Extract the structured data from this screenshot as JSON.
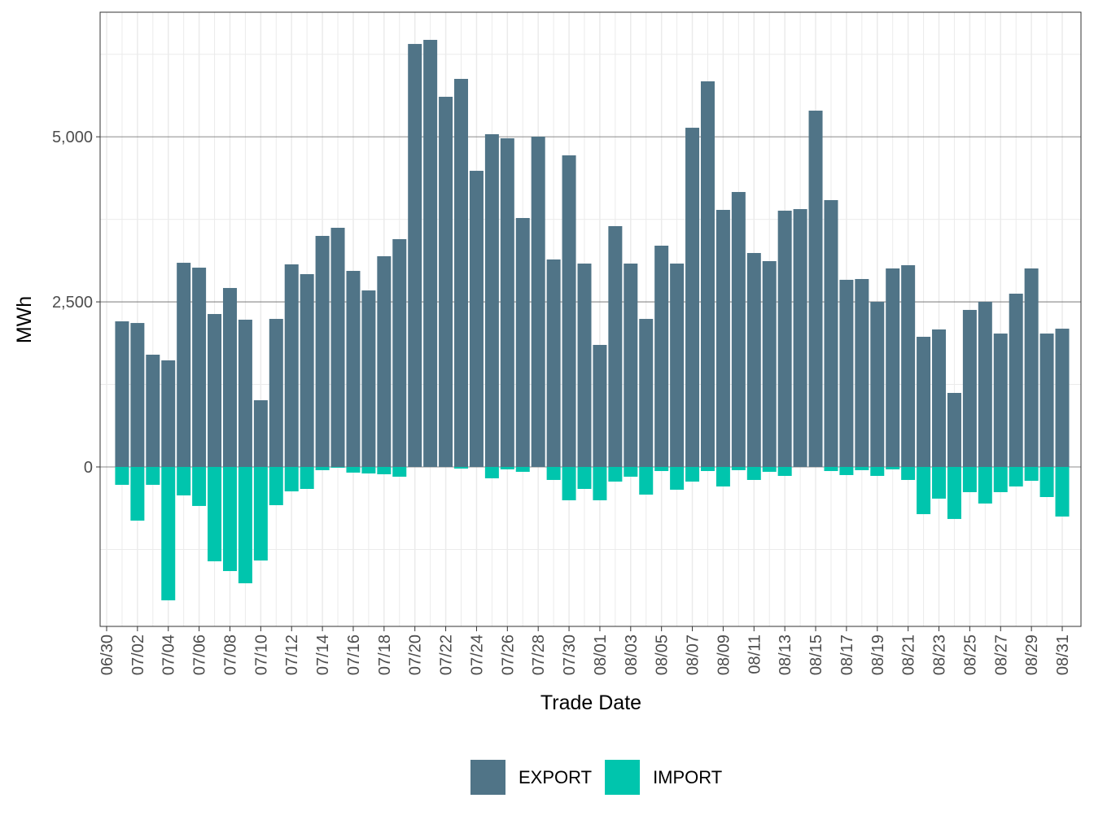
{
  "chart_data": {
    "type": "bar",
    "stacked": true,
    "x_label": "Trade Date",
    "y_label": "MWh",
    "categories": [
      "06/30",
      null,
      "07/02",
      null,
      "07/04",
      null,
      "07/06",
      null,
      "07/08",
      null,
      "07/10",
      null,
      "07/12",
      null,
      "07/14",
      null,
      "07/16",
      null,
      "07/18",
      null,
      "07/20",
      null,
      "07/22",
      null,
      "07/24",
      null,
      "07/26",
      null,
      "07/28",
      null,
      "07/30",
      null,
      "08/01",
      null,
      "08/03",
      null,
      "08/05",
      null,
      "08/07",
      null,
      "08/09",
      null,
      "08/11",
      null,
      "08/13",
      null,
      "08/15",
      null,
      "08/17",
      null,
      "08/19",
      null,
      "08/21",
      null,
      "08/23",
      null,
      "08/25",
      null,
      "08/27",
      null,
      "08/29",
      null,
      "08/31"
    ],
    "series": [
      {
        "name": "EXPORT",
        "color": "#507487",
        "values": [
          null,
          2205,
          2180,
          1700,
          1614,
          3092,
          3018,
          2316,
          2710,
          2230,
          1010,
          2242,
          3068,
          2920,
          3499,
          3622,
          2969,
          2673,
          3191,
          3450,
          6406,
          6468,
          5606,
          5877,
          4485,
          5039,
          4977,
          3770,
          5002,
          3142,
          4719,
          3080,
          1848,
          3647,
          3080,
          2242,
          3351,
          3080,
          5137,
          5840,
          3893,
          4164,
          3240,
          3117,
          3881,
          3905,
          5396,
          4041,
          2834,
          2846,
          2501,
          3006,
          3055,
          1971,
          2082,
          1121,
          2378,
          2501,
          2020,
          2624,
          3006,
          2020,
          2094
        ]
      },
      {
        "name": "IMPORT",
        "color": "#00c5ad",
        "values": [
          null,
          -271,
          -813,
          -271,
          -2020,
          -431,
          -591,
          -1429,
          -1577,
          -1762,
          -1417,
          -579,
          -370,
          -333,
          -49,
          -12,
          -86,
          -99,
          -111,
          -148,
          0,
          0,
          0,
          -25,
          0,
          -172,
          -37,
          -74,
          0,
          -197,
          -505,
          -333,
          -505,
          -222,
          -148,
          -419,
          -62,
          -345,
          -222,
          -62,
          -296,
          -49,
          -197,
          -74,
          -136,
          0,
          0,
          -62,
          -123,
          -49,
          -136,
          -37,
          -197,
          -715,
          -480,
          -788,
          -382,
          -554,
          -382,
          -296,
          -210,
          -456,
          -751
        ]
      }
    ],
    "ylim": [
      -2415,
      6887
    ],
    "yticks": [
      0,
      {
        "value": 2500,
        "label": "2,500"
      },
      {
        "value": 5000,
        "label": "5,000"
      }
    ],
    "grid": true,
    "legend": "bottom"
  }
}
